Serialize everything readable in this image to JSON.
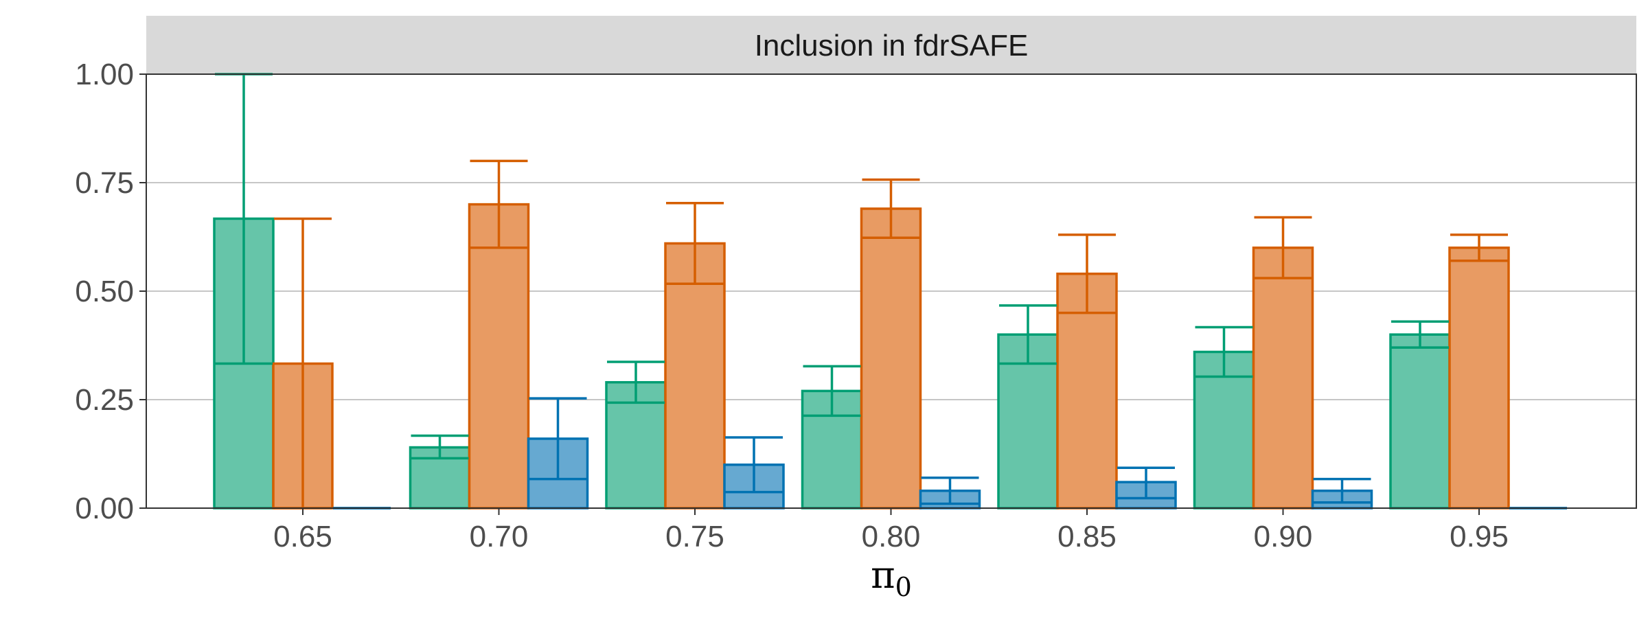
{
  "chart_data": {
    "type": "bar",
    "title": "Inclusion in fdrSAFE",
    "xlabel": "π",
    "xlabel_subscript": "0",
    "ylabel": "",
    "ylim": [
      0,
      1
    ],
    "y_ticks": [
      "0.00",
      "0.25",
      "0.50",
      "0.75",
      "1.00"
    ],
    "grid": true,
    "legend": "none",
    "categories": [
      "0.65",
      "0.70",
      "0.75",
      "0.80",
      "0.85",
      "0.90",
      "0.95"
    ],
    "series": [
      {
        "color": "#009E73",
        "fill": "#66C5A9",
        "values": [
          0.667,
          0.14,
          0.29,
          0.27,
          0.4,
          0.36,
          0.4
        ],
        "error_low": [
          0.333,
          0.115,
          0.243,
          0.213,
          0.333,
          0.303,
          0.37
        ],
        "error_high": [
          1.0,
          0.167,
          0.337,
          0.327,
          0.467,
          0.417,
          0.43
        ]
      },
      {
        "color": "#D55E00",
        "fill": "#E89B63",
        "values": [
          0.333,
          0.7,
          0.61,
          0.69,
          0.54,
          0.6,
          0.6
        ],
        "error_low": [
          0.0,
          0.6,
          0.517,
          0.623,
          0.45,
          0.53,
          0.57
        ],
        "error_high": [
          0.667,
          0.8,
          0.703,
          0.757,
          0.63,
          0.67,
          0.63
        ]
      },
      {
        "color": "#0072B2",
        "fill": "#66A9D1",
        "values": [
          0.0,
          0.16,
          0.1,
          0.04,
          0.06,
          0.04,
          0.0
        ],
        "error_low": [
          0.0,
          0.067,
          0.037,
          0.01,
          0.023,
          0.013,
          0.0
        ],
        "error_high": [
          0.0,
          0.253,
          0.163,
          0.07,
          0.093,
          0.067,
          0.0
        ]
      }
    ]
  }
}
